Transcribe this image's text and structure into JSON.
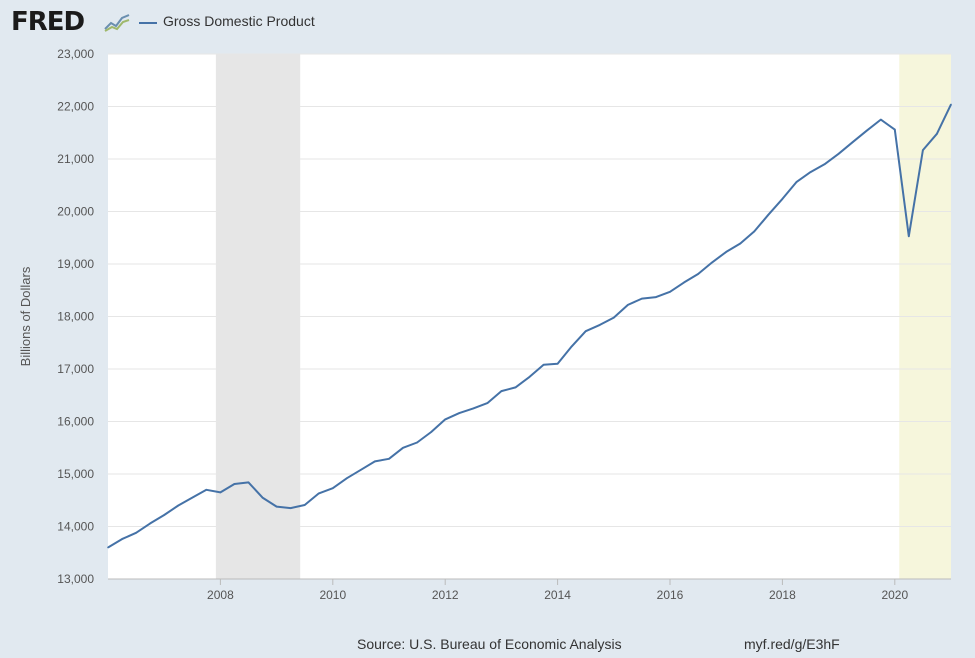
{
  "header": {
    "logo": "FRED",
    "logo_icon": "fred-chart-logo-icon"
  },
  "legend": {
    "label": "Gross Domestic Product",
    "color": "#4572a7"
  },
  "footer": {
    "source": "Source: U.S. Bureau of Economic Analysis",
    "link": "myf.red/g/E3hF"
  },
  "colors": {
    "background": "#e1e9f0",
    "plot": "#ffffff",
    "recession": "#e6e6e6",
    "highlight": "#f6f6dc",
    "line": "#4572a7"
  },
  "chart_data": {
    "type": "line",
    "title": "",
    "xlabel": "",
    "ylabel": "Billions of Dollars",
    "xlim": [
      2006.0,
      2021.0
    ],
    "ylim": [
      13000,
      23000
    ],
    "grid": true,
    "legend_position": "top-left",
    "x_ticks": [
      2008,
      2010,
      2012,
      2014,
      2016,
      2018,
      2020
    ],
    "x_tick_labels": [
      "2008",
      "2010",
      "2012",
      "2014",
      "2016",
      "2018",
      "2020"
    ],
    "y_ticks": [
      13000,
      14000,
      15000,
      16000,
      17000,
      18000,
      19000,
      20000,
      21000,
      22000,
      23000
    ],
    "y_tick_labels": [
      "13,000",
      "14,000",
      "15,000",
      "16,000",
      "17,000",
      "18,000",
      "19,000",
      "20,000",
      "21,000",
      "22,000",
      "23,000"
    ],
    "shaded_periods": [
      {
        "start": 2007.92,
        "end": 2009.42,
        "kind": "recession"
      },
      {
        "start": 2020.08,
        "end": 2021.0,
        "kind": "highlight"
      }
    ],
    "series": [
      {
        "name": "Gross Domestic Product",
        "x": [
          2006.0,
          2006.25,
          2006.5,
          2006.75,
          2007.0,
          2007.25,
          2007.5,
          2007.75,
          2008.0,
          2008.25,
          2008.5,
          2008.75,
          2009.0,
          2009.25,
          2009.5,
          2009.75,
          2010.0,
          2010.25,
          2010.5,
          2010.75,
          2011.0,
          2011.25,
          2011.5,
          2011.75,
          2012.0,
          2012.25,
          2012.5,
          2012.75,
          2013.0,
          2013.25,
          2013.5,
          2013.75,
          2014.0,
          2014.25,
          2014.5,
          2014.75,
          2015.0,
          2015.25,
          2015.5,
          2015.75,
          2016.0,
          2016.25,
          2016.5,
          2016.75,
          2017.0,
          2017.25,
          2017.5,
          2017.75,
          2018.0,
          2018.25,
          2018.5,
          2018.75,
          2019.0,
          2019.25,
          2019.5,
          2019.75,
          2020.0,
          2020.25,
          2020.5,
          2020.75,
          2021.0
        ],
        "values": [
          13600,
          13760,
          13880,
          14060,
          14220,
          14400,
          14550,
          14700,
          14650,
          14810,
          14840,
          14550,
          14380,
          14350,
          14410,
          14630,
          14730,
          14920,
          15080,
          15240,
          15290,
          15500,
          15600,
          15800,
          16040,
          16160,
          16250,
          16350,
          16580,
          16650,
          16850,
          17080,
          17100,
          17430,
          17720,
          17840,
          17980,
          18220,
          18340,
          18370,
          18470,
          18650,
          18810,
          19030,
          19230,
          19390,
          19620,
          19940,
          20240,
          20560,
          20750,
          20900,
          21100,
          21320,
          21540,
          21750,
          21560,
          19530,
          21170,
          21480,
          22040
        ]
      }
    ]
  }
}
